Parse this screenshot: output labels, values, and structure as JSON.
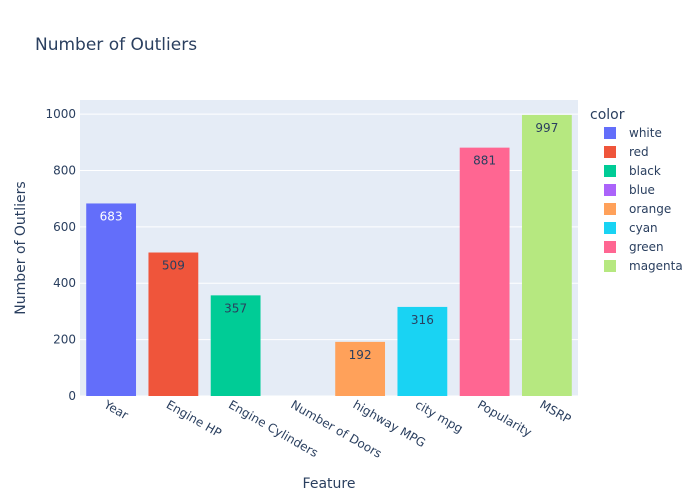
{
  "chart_data": {
    "type": "bar",
    "title": "Number of Outliers",
    "xlabel": "Feature",
    "ylabel": "Number of Outliers",
    "ylim": [
      0,
      1050
    ],
    "yticks": [
      0,
      200,
      400,
      600,
      800,
      1000
    ],
    "grid": true,
    "legend_title": "color",
    "legend_position": "right",
    "categories": [
      "Year",
      "Engine HP",
      "Engine Cylinders",
      "Number of Doors",
      "highway MPG",
      "city mpg",
      "Popularity",
      "MSRP"
    ],
    "series": [
      {
        "name": "white",
        "category": "Year",
        "value": 683,
        "color": "#636efa",
        "label_color": "#ffffff"
      },
      {
        "name": "red",
        "category": "Engine HP",
        "value": 509,
        "color": "#ef553b",
        "label_color": "#2a3f5f"
      },
      {
        "name": "black",
        "category": "Engine Cylinders",
        "value": 357,
        "color": "#00cc96",
        "label_color": "#2a3f5f"
      },
      {
        "name": "blue",
        "category": "Number of Doors",
        "value": 0,
        "color": "#ab63fa",
        "label_color": "#2a3f5f"
      },
      {
        "name": "orange",
        "category": "highway MPG",
        "value": 192,
        "color": "#ffa15a",
        "label_color": "#2a3f5f"
      },
      {
        "name": "cyan",
        "category": "city mpg",
        "value": 316,
        "color": "#19d3f3",
        "label_color": "#2a3f5f"
      },
      {
        "name": "green",
        "category": "Popularity",
        "value": 881,
        "color": "#ff6692",
        "label_color": "#2a3f5f"
      },
      {
        "name": "magenta",
        "category": "MSRP",
        "value": 997,
        "color": "#b6e880",
        "label_color": "#2a3f5f"
      }
    ],
    "colors": {
      "plot_background": "#e5ecf6",
      "gridline": "#ffffff",
      "text": "#2a3f5f"
    }
  }
}
